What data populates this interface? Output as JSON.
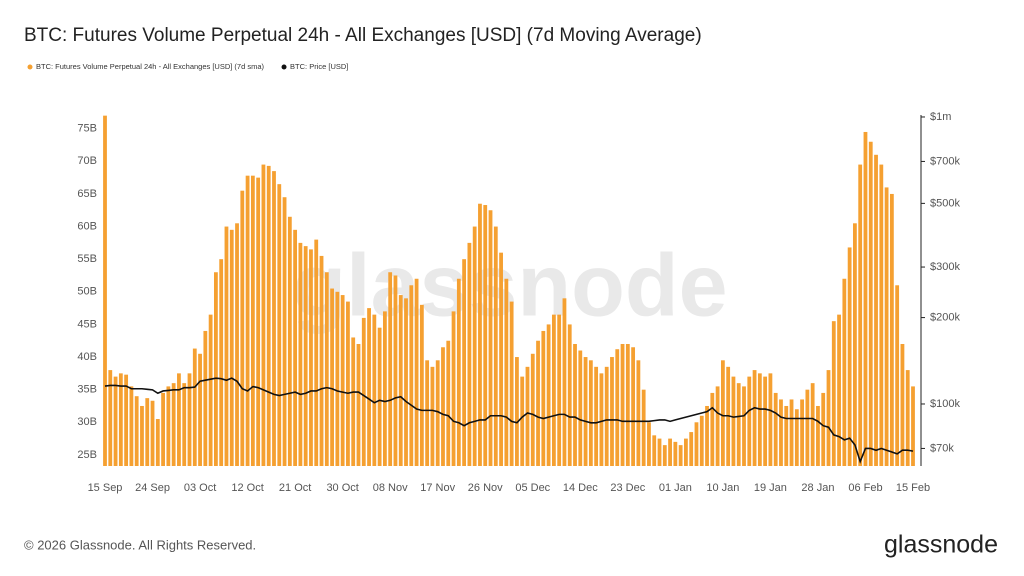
{
  "chart_data": {
    "type": "bar-line",
    "title": "BTC: Futures Volume Perpetual 24h - All Exchanges [USD] (7d Moving Average)",
    "categories": [
      "15 Sep",
      null,
      null,
      null,
      null,
      null,
      null,
      null,
      null,
      "24 Sep",
      null,
      null,
      null,
      null,
      null,
      null,
      null,
      null,
      "03 Oct",
      null,
      null,
      null,
      null,
      null,
      null,
      null,
      null,
      "12 Oct",
      null,
      null,
      null,
      null,
      null,
      null,
      null,
      null,
      "21 Oct",
      null,
      null,
      null,
      null,
      null,
      null,
      null,
      null,
      "30 Oct",
      null,
      null,
      null,
      null,
      null,
      null,
      null,
      null,
      "08 Nov",
      null,
      null,
      null,
      null,
      null,
      null,
      null,
      null,
      "17 Nov",
      null,
      null,
      null,
      null,
      null,
      null,
      null,
      null,
      "26 Nov",
      null,
      null,
      null,
      null,
      null,
      null,
      null,
      null,
      "05 Dec",
      null,
      null,
      null,
      null,
      null,
      null,
      null,
      null,
      "14 Dec",
      null,
      null,
      null,
      null,
      null,
      null,
      null,
      null,
      "23 Dec",
      null,
      null,
      null,
      null,
      null,
      null,
      null,
      null,
      "01 Jan",
      null,
      null,
      null,
      null,
      null,
      null,
      null,
      null,
      "10 Jan",
      null,
      null,
      null,
      null,
      null,
      null,
      null,
      null,
      "19 Jan",
      null,
      null,
      null,
      null,
      null,
      null,
      null,
      null,
      "28 Jan",
      null,
      null,
      null,
      null,
      null,
      null,
      null,
      null,
      "06 Feb",
      null,
      null,
      null,
      null,
      null,
      null,
      null,
      null,
      "15 Feb"
    ],
    "series": [
      {
        "name": "BTC: Futures Volume Perpetual 24h - All Exchanges [USD] (7d sma)",
        "color": "#f5a031",
        "kind": "bar",
        "values": [
          77,
          38,
          37,
          37.5,
          37.3,
          35.5,
          34,
          32.5,
          33.7,
          33.3,
          30.5,
          34.5,
          35.5,
          36,
          37.5,
          36,
          37.5,
          41.3,
          40.5,
          44,
          46.5,
          53,
          55,
          60,
          59.5,
          60.5,
          65.5,
          67.8,
          67.8,
          67.5,
          69.5,
          69.3,
          68.5,
          66.5,
          64.5,
          61.5,
          59.5,
          57.5,
          57,
          56.5,
          58,
          55.5,
          53,
          50.5,
          50,
          49.5,
          48.5,
          43,
          42,
          46,
          47.5,
          46.5,
          44.5,
          47,
          53,
          52.5,
          49.5,
          49,
          51,
          52,
          48,
          39.5,
          38.5,
          39.5,
          41.5,
          42.5,
          47,
          52,
          55,
          57.5,
          60,
          63.5,
          63.3,
          62.5,
          60,
          56,
          52,
          48.5,
          40,
          37,
          38.5,
          40.5,
          42.5,
          44,
          45,
          46.5,
          46.5,
          49,
          45,
          42,
          41,
          40,
          39.5,
          38.5,
          37.5,
          38.5,
          40,
          41.2,
          42,
          42,
          41.5,
          39.5,
          35,
          30,
          28,
          27.5,
          26.5,
          27.5,
          27,
          26.5,
          27.5,
          28.5,
          30,
          31,
          32.5,
          34.5,
          35.5,
          39.5,
          38.5,
          37,
          36,
          35.5,
          37,
          38,
          37.5,
          37,
          37.5,
          34.5,
          33.5,
          32.5,
          33.5,
          32,
          33.5,
          35,
          36,
          32.5,
          34.5,
          38,
          45.5,
          46.5,
          52,
          56.8,
          60.5,
          69.5,
          74.5,
          73,
          71,
          69.5,
          66,
          65,
          51,
          42,
          38,
          35.5
        ]
      },
      {
        "name": "BTC: Price [USD]",
        "color": "#111111",
        "kind": "line",
        "axis": "y2",
        "values": [
          115500,
          116000,
          116000,
          115500,
          115500,
          113000,
          113000,
          113000,
          112500,
          112000,
          109000,
          111000,
          111500,
          112000,
          112000,
          114000,
          114000,
          114500,
          120000,
          121000,
          122000,
          123000,
          122500,
          121000,
          123000,
          120000,
          113000,
          111000,
          115000,
          114000,
          112000,
          110000,
          108000,
          107000,
          108000,
          109000,
          110000,
          108000,
          109000,
          111000,
          111000,
          113000,
          114000,
          113000,
          111000,
          110000,
          109000,
          110000,
          110000,
          107000,
          104000,
          101000,
          103000,
          102000,
          103000,
          105000,
          106000,
          102000,
          99000,
          96000,
          95000,
          95000,
          95000,
          94000,
          92000,
          91000,
          87000,
          86000,
          84000,
          86000,
          87000,
          88000,
          88000,
          91000,
          91000,
          91000,
          90000,
          87000,
          86000,
          90000,
          93000,
          92000,
          90000,
          89000,
          90000,
          91000,
          92000,
          92000,
          90000,
          90000,
          88000,
          87000,
          86000,
          86000,
          87000,
          88000,
          88000,
          88000,
          87000,
          87000,
          87000,
          87000,
          87000,
          87000,
          87500,
          88000,
          88000,
          87000,
          88000,
          89000,
          90000,
          91000,
          92000,
          93000,
          94000,
          97000,
          93000,
          91000,
          91000,
          90000,
          90500,
          91000,
          95000,
          97000,
          96000,
          96000,
          95000,
          93000,
          90000,
          89000,
          89000,
          89000,
          89000,
          89000,
          89000,
          87000,
          84000,
          83000,
          78000,
          77000,
          75000,
          76000,
          72000,
          63000,
          70000,
          70000,
          69000,
          70000,
          69000,
          68000,
          67000,
          69000,
          69000,
          68500
        ]
      }
    ],
    "ylim": [
      23.3,
      77.1
    ],
    "yticks": [
      {
        "value": 25,
        "label": "25B"
      },
      {
        "value": 30,
        "label": "30B"
      },
      {
        "value": 35,
        "label": "35B"
      },
      {
        "value": 40,
        "label": "40B"
      },
      {
        "value": 45,
        "label": "45B"
      },
      {
        "value": 50,
        "label": "50B"
      },
      {
        "value": 55,
        "label": "55B"
      },
      {
        "value": 60,
        "label": "60B"
      },
      {
        "value": 65,
        "label": "65B"
      },
      {
        "value": 70,
        "label": "70B"
      },
      {
        "value": 75,
        "label": "75B"
      }
    ],
    "y2lim": [
      60800,
      1016000
    ],
    "y2log": true,
    "y2ticks": [
      {
        "value": 70000,
        "label": "$70k"
      },
      {
        "value": 100000,
        "label": "$100k"
      },
      {
        "value": 200000,
        "label": "$200k"
      },
      {
        "value": 300000,
        "label": "$300k"
      },
      {
        "value": 500000,
        "label": "$500k"
      },
      {
        "value": 700000,
        "label": "$700k"
      },
      {
        "value": 1000000,
        "label": "$1m"
      }
    ],
    "grid": false,
    "legend": "top-left",
    "watermark": "glassnode",
    "copyright": "© 2026 Glassnode. All Rights Reserved.",
    "logo": "glassnode"
  }
}
